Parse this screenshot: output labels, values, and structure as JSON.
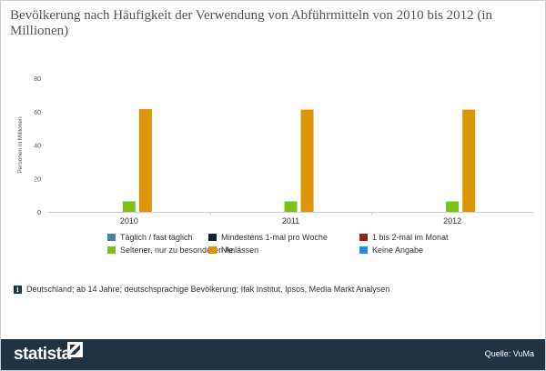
{
  "title": "Bevölkerung nach Häufigkeit der Verwendung von Abführmitteln von 2010 bis 2012 (in Millionen)",
  "source_note": "Deutschland; ab 14 Jahre; deutschsprachige Bevölkerung; Ifak Institut, Ipsos, Media Markt Analysen",
  "footer": {
    "brand": "statista",
    "source": "Quelle: VuMa"
  },
  "chart_data": {
    "type": "bar",
    "categories": [
      "2010",
      "2011",
      "2012"
    ],
    "ylabel": "Personen in Millionen",
    "xlabel": "",
    "ylim": [
      0,
      80
    ],
    "yticks": [
      0,
      20,
      40,
      60,
      80
    ],
    "grid": false,
    "legend_position": "bottom",
    "series": [
      {
        "name": "Täglich / fast täglich",
        "color": "#4a7fae",
        "values": [
          0,
          0,
          0
        ]
      },
      {
        "name": "Mindestens 1-mal pro Woche",
        "color": "#0e2433",
        "values": [
          0,
          0,
          0
        ]
      },
      {
        "name": "1 bis 2-mal im Monat",
        "color": "#9b2219",
        "values": [
          0,
          0,
          0
        ]
      },
      {
        "name": "Seltener, nur zu besonderen Anlässen",
        "color": "#7dc219",
        "values": [
          6.3,
          6.3,
          6.3
        ]
      },
      {
        "name": "Nie",
        "color": "#de9505",
        "values": [
          61.5,
          61.2,
          61.2
        ]
      },
      {
        "name": "Keine Angabe",
        "color": "#1f90d8",
        "values": [
          0,
          0,
          0
        ]
      }
    ]
  }
}
